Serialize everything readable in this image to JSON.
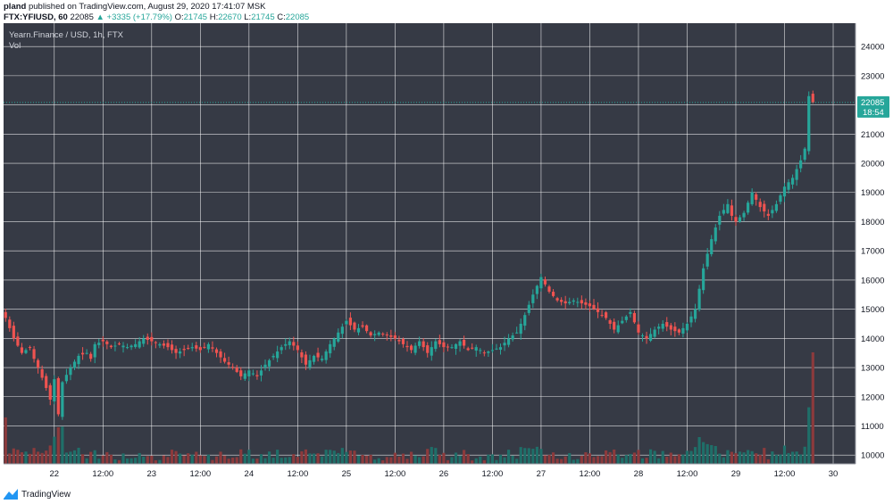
{
  "header": {
    "user": "pland",
    "published_text": "published on TradingView.com, August 29, 2020 17:41:07 MSK",
    "symbol": "FTX:YFIUSD, 60",
    "last": "22085",
    "change": "▲ +3335 (+17.79%)",
    "o_label": "O:",
    "o_value": "21745",
    "h_label": "H:",
    "h_value": "22670",
    "l_label": "L:",
    "l_value": "21745",
    "c_label": "C:",
    "c_value": "22085"
  },
  "legend": {
    "title": "Yearn.Finance / USD, 1h, FTX",
    "vol": "Vol"
  },
  "price_badge": {
    "price": "22085",
    "countdown": "18:54"
  },
  "footer": {
    "brand": "TradingView",
    "logo_icon": "tradingview-logo-icon"
  },
  "colors": {
    "background": "#363a45",
    "grid": "#ffffff",
    "up": "#26a69a",
    "down": "#ef5350",
    "vol_up": "#1f6f69",
    "vol_down": "#8c3a3c"
  },
  "chart_data": {
    "type": "candlestick",
    "y_ticks": [
      10000,
      11000,
      12000,
      13000,
      14000,
      15000,
      16000,
      17000,
      18000,
      19000,
      20000,
      21000,
      22000,
      23000,
      24000
    ],
    "ylim": [
      9700,
      24800
    ],
    "x_ticks": [
      {
        "i": 12,
        "label": "22"
      },
      {
        "i": 24,
        "label": "12:00"
      },
      {
        "i": 36,
        "label": "23"
      },
      {
        "i": 48,
        "label": "12:00"
      },
      {
        "i": 60,
        "label": "24"
      },
      {
        "i": 72,
        "label": "12:00"
      },
      {
        "i": 84,
        "label": "25"
      },
      {
        "i": 96,
        "label": "12:00"
      },
      {
        "i": 108,
        "label": "26"
      },
      {
        "i": 120,
        "label": "12:00"
      },
      {
        "i": 132,
        "label": "27"
      },
      {
        "i": 144,
        "label": "12:00"
      },
      {
        "i": 156,
        "label": "28"
      },
      {
        "i": 168,
        "label": "12:00"
      },
      {
        "i": 180,
        "label": "29"
      },
      {
        "i": 192,
        "label": "12:00"
      },
      {
        "i": 204,
        "label": "30"
      }
    ],
    "xlim": [
      0,
      210
    ],
    "last_price": 22085,
    "close_anchors": [
      [
        0,
        14700
      ],
      [
        2,
        14000
      ],
      [
        4,
        13500
      ],
      [
        6,
        13700
      ],
      [
        7,
        13300
      ],
      [
        8,
        13000
      ],
      [
        10,
        12300
      ],
      [
        11,
        11900
      ],
      [
        12,
        12600
      ],
      [
        13,
        11400
      ],
      [
        14,
        12500
      ],
      [
        16,
        13000
      ],
      [
        18,
        13400
      ],
      [
        20,
        13500
      ],
      [
        21,
        13300
      ],
      [
        22,
        13800
      ],
      [
        24,
        13900
      ],
      [
        26,
        13700
      ],
      [
        28,
        13800
      ],
      [
        30,
        13700
      ],
      [
        32,
        13800
      ],
      [
        34,
        14000
      ],
      [
        36,
        13900
      ],
      [
        38,
        13800
      ],
      [
        40,
        13700
      ],
      [
        42,
        13500
      ],
      [
        44,
        13600
      ],
      [
        46,
        13700
      ],
      [
        48,
        13600
      ],
      [
        50,
        13800
      ],
      [
        52,
        13500
      ],
      [
        54,
        13200
      ],
      [
        56,
        13000
      ],
      [
        58,
        12700
      ],
      [
        60,
        12900
      ],
      [
        62,
        12700
      ],
      [
        64,
        13100
      ],
      [
        66,
        13400
      ],
      [
        68,
        13700
      ],
      [
        70,
        13900
      ],
      [
        72,
        13600
      ],
      [
        74,
        13100
      ],
      [
        76,
        13400
      ],
      [
        78,
        13300
      ],
      [
        80,
        13800
      ],
      [
        82,
        14200
      ],
      [
        84,
        14600
      ],
      [
        86,
        14300
      ],
      [
        88,
        14400
      ],
      [
        90,
        14100
      ],
      [
        92,
        14200
      ],
      [
        94,
        14100
      ],
      [
        96,
        14000
      ],
      [
        98,
        13800
      ],
      [
        100,
        13600
      ],
      [
        102,
        13900
      ],
      [
        104,
        13500
      ],
      [
        106,
        13900
      ],
      [
        108,
        13700
      ],
      [
        110,
        13700
      ],
      [
        112,
        13900
      ],
      [
        114,
        13600
      ],
      [
        116,
        13700
      ],
      [
        118,
        13500
      ],
      [
        120,
        13600
      ],
      [
        122,
        13700
      ],
      [
        124,
        14000
      ],
      [
        126,
        14200
      ],
      [
        128,
        14800
      ],
      [
        130,
        15500
      ],
      [
        132,
        16100
      ],
      [
        134,
        15600
      ],
      [
        136,
        15300
      ],
      [
        138,
        15200
      ],
      [
        140,
        15300
      ],
      [
        142,
        15200
      ],
      [
        144,
        15100
      ],
      [
        146,
        14900
      ],
      [
        148,
        14700
      ],
      [
        150,
        14300
      ],
      [
        152,
        14600
      ],
      [
        154,
        14900
      ],
      [
        156,
        14200
      ],
      [
        158,
        14000
      ],
      [
        160,
        14300
      ],
      [
        162,
        14500
      ],
      [
        164,
        14300
      ],
      [
        166,
        14200
      ],
      [
        168,
        14500
      ],
      [
        170,
        15000
      ],
      [
        172,
        16400
      ],
      [
        174,
        17400
      ],
      [
        176,
        18200
      ],
      [
        178,
        18600
      ],
      [
        179,
        18200
      ],
      [
        180,
        18000
      ],
      [
        182,
        18300
      ],
      [
        184,
        19000
      ],
      [
        186,
        18500
      ],
      [
        188,
        18200
      ],
      [
        190,
        18600
      ],
      [
        192,
        19200
      ],
      [
        194,
        19500
      ],
      [
        196,
        20100
      ],
      [
        197,
        20500
      ],
      [
        198,
        22300
      ],
      [
        199,
        22085
      ]
    ],
    "volume_max_display": 3600
  }
}
